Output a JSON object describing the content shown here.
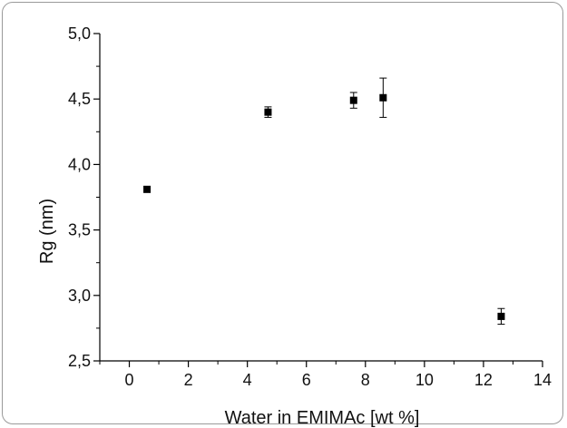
{
  "chart_data": {
    "type": "scatter",
    "xlabel": "Water in EMIMAc [wt %]",
    "ylabel": "Rg (nm)",
    "xlim": [
      -1,
      14
    ],
    "ylim": [
      2.5,
      5.0
    ],
    "x_ticks": [
      0,
      2,
      4,
      6,
      8,
      10,
      12,
      14
    ],
    "x_tick_labels": [
      "0",
      "2",
      "4",
      "6",
      "8",
      "10",
      "12",
      "14"
    ],
    "y_ticks": [
      2.5,
      3.0,
      3.5,
      4.0,
      4.5,
      5.0
    ],
    "y_tick_labels": [
      "2,5",
      "3,0",
      "3,5",
      "4,0",
      "4,5",
      "5,0"
    ],
    "grid": false,
    "marker": "square",
    "marker_color": "#000000",
    "points": [
      {
        "x": 0.6,
        "y": 3.81,
        "err": 0.0
      },
      {
        "x": 4.7,
        "y": 4.4,
        "err": 0.04
      },
      {
        "x": 7.6,
        "y": 4.49,
        "err": 0.06
      },
      {
        "x": 8.6,
        "y": 4.51,
        "err": 0.15
      },
      {
        "x": 12.6,
        "y": 2.84,
        "err": 0.06
      }
    ]
  }
}
